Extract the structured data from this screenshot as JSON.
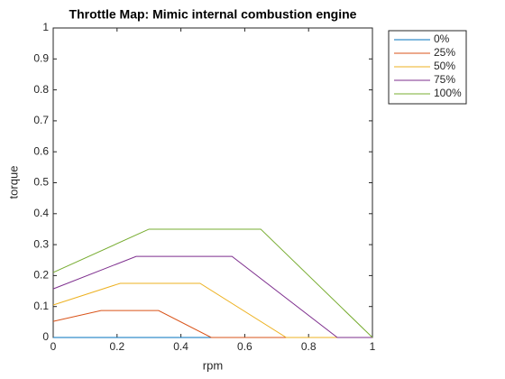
{
  "chart_data": {
    "type": "line",
    "title": "Throttle Map: Mimic internal combustion engine",
    "xlabel": "rpm",
    "ylabel": "torque",
    "xlim": [
      0,
      1
    ],
    "ylim": [
      0,
      1
    ],
    "xticks": [
      0,
      0.2,
      0.4,
      0.6,
      0.8,
      1
    ],
    "yticks": [
      0,
      0.1,
      0.2,
      0.3,
      0.4,
      0.5,
      0.6,
      0.7,
      0.8,
      0.9,
      1
    ],
    "legend": "northeast",
    "series": [
      {
        "name": "0%",
        "color": "#0072BD",
        "x": [
          0,
          1
        ],
        "values": [
          0,
          0
        ]
      },
      {
        "name": "25%",
        "color": "#D95319",
        "x": [
          0,
          0.15,
          0.33,
          0.495,
          1
        ],
        "values": [
          0.052,
          0.087,
          0.087,
          0,
          0
        ]
      },
      {
        "name": "50%",
        "color": "#EDB120",
        "x": [
          0,
          0.21,
          0.46,
          0.73,
          1
        ],
        "values": [
          0.105,
          0.175,
          0.175,
          0,
          0
        ]
      },
      {
        "name": "75%",
        "color": "#7E2F8E",
        "x": [
          0,
          0.26,
          0.56,
          0.89,
          1
        ],
        "values": [
          0.157,
          0.262,
          0.262,
          0,
          0
        ]
      },
      {
        "name": "100%",
        "color": "#77AC30",
        "x": [
          0,
          0.3,
          0.65,
          1
        ],
        "values": [
          0.21,
          0.35,
          0.35,
          0
        ]
      }
    ]
  }
}
